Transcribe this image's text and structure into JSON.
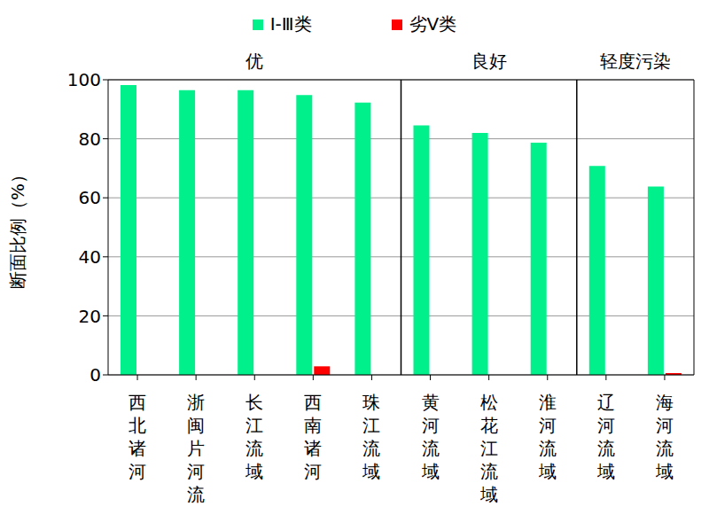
{
  "chart_data": {
    "type": "bar",
    "categories": [
      "西北诸河",
      "浙闽片河流",
      "长江流域",
      "西南诸河",
      "珠江流域",
      "黄河流域",
      "松花江流域",
      "淮河流域",
      "辽河流域",
      "海河流域"
    ],
    "series": [
      {
        "name": "Ⅰ-Ⅲ类",
        "color": "#00f08c",
        "values": [
          98.2,
          96.5,
          96.5,
          94.8,
          92.3,
          84.5,
          82.0,
          78.7,
          70.8,
          63.8
        ]
      },
      {
        "name": "劣Ⅴ类",
        "color": "#ff0000",
        "values": [
          0,
          0,
          0,
          2.9,
          0,
          0,
          0,
          0,
          0,
          0.6
        ]
      }
    ],
    "groups": [
      {
        "label": "优",
        "categories": [
          "西北诸河",
          "浙闽片河流",
          "长江流域",
          "西南诸河",
          "珠江流域"
        ]
      },
      {
        "label": "良好",
        "categories": [
          "黄河流域",
          "松花江流域",
          "淮河流域"
        ]
      },
      {
        "label": "轻度污染",
        "categories": [
          "辽河流域",
          "海河流域"
        ]
      }
    ],
    "y_label": "断面比例（%）",
    "ylim": [
      0,
      100
    ],
    "yticks": [
      0,
      20,
      40,
      60,
      80,
      100
    ],
    "grid": true,
    "legend": "top"
  }
}
